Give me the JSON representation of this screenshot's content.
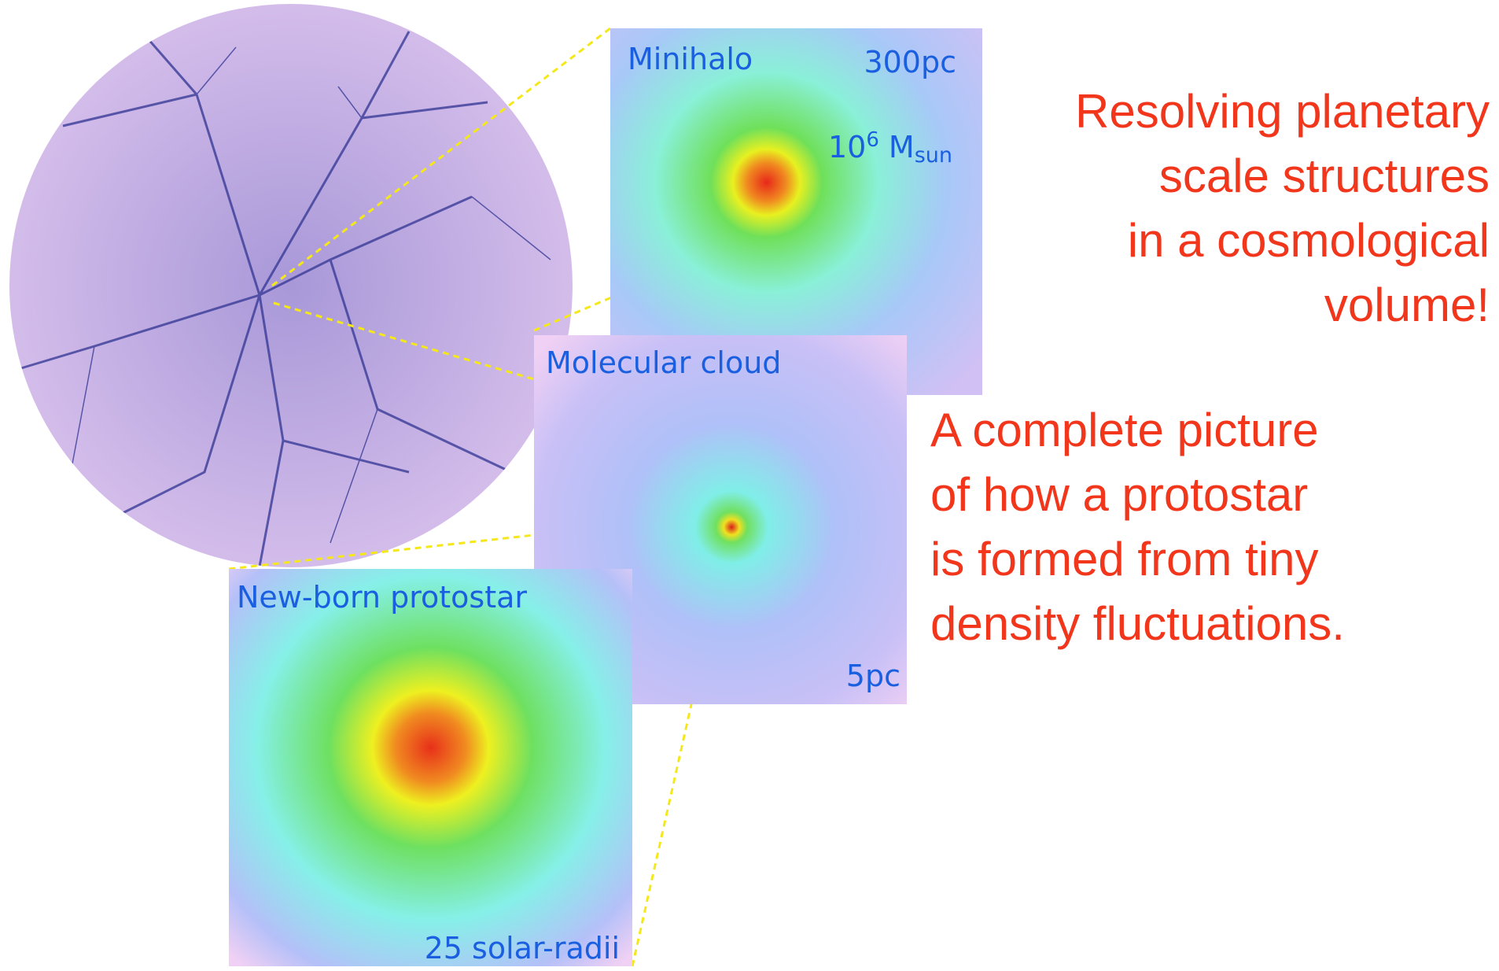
{
  "panels": {
    "minihalo": {
      "title": "Minihalo",
      "scale": "300pc",
      "mass": {
        "coefficient": "10",
        "exponent": "6",
        "symbol": "M",
        "subscript": "sun"
      }
    },
    "cloud": {
      "title": "Molecular cloud",
      "scale": "5pc"
    },
    "protostar": {
      "title": "New-born protostar",
      "scale": "25 solar-radii"
    }
  },
  "notes": {
    "resolving": [
      "Resolving planetary",
      "scale structures",
      "in a cosmological",
      "volume!"
    ],
    "picture": [
      "A complete picture",
      "of how a protostar",
      "is formed from tiny",
      "density fluctuations."
    ]
  }
}
